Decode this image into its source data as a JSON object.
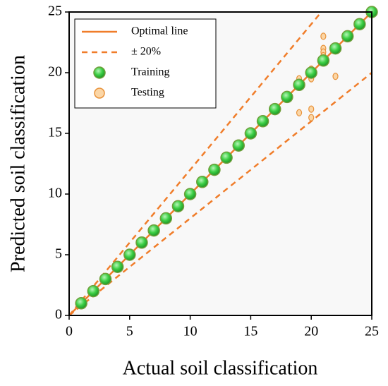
{
  "chart_data": {
    "type": "scatter",
    "x_label": "Actual soil classification",
    "y_label": "Predicted soil classification",
    "xlim": [
      0,
      25
    ],
    "ylim": [
      0,
      25
    ],
    "xticks": [
      0,
      5,
      10,
      15,
      20,
      25
    ],
    "yticks": [
      0,
      5,
      10,
      15,
      20,
      25
    ],
    "reference_lines": [
      {
        "name": "Optimal line",
        "style": "solid",
        "color": "#f07d2a"
      },
      {
        "name": "± 20%",
        "style": "dashed",
        "color": "#f07d2a",
        "tolerance": 20
      }
    ],
    "series": [
      {
        "name": "Training",
        "color": "#2fbf3a",
        "x": [
          1,
          2,
          3,
          4,
          5,
          6,
          7,
          8,
          9,
          10,
          11,
          12,
          13,
          14,
          15,
          16,
          17,
          18,
          19,
          20,
          21,
          22,
          23,
          24,
          25
        ],
        "y": [
          1,
          2,
          3,
          4,
          5,
          6,
          7,
          8,
          9,
          10,
          11,
          12,
          13,
          14,
          15,
          16,
          17,
          18,
          19,
          20,
          21,
          22,
          23,
          24,
          25
        ]
      },
      {
        "name": "Testing",
        "color": "#fbd6a6",
        "x": [
          19,
          19,
          19,
          20,
          20,
          20,
          20,
          20,
          21,
          21,
          21,
          21,
          21,
          22
        ],
        "y": [
          16.7,
          19.2,
          19.5,
          16.3,
          17,
          19.5,
          20,
          20.3,
          23,
          22,
          21.7,
          21.4,
          21.1,
          19.7
        ]
      }
    ]
  }
}
